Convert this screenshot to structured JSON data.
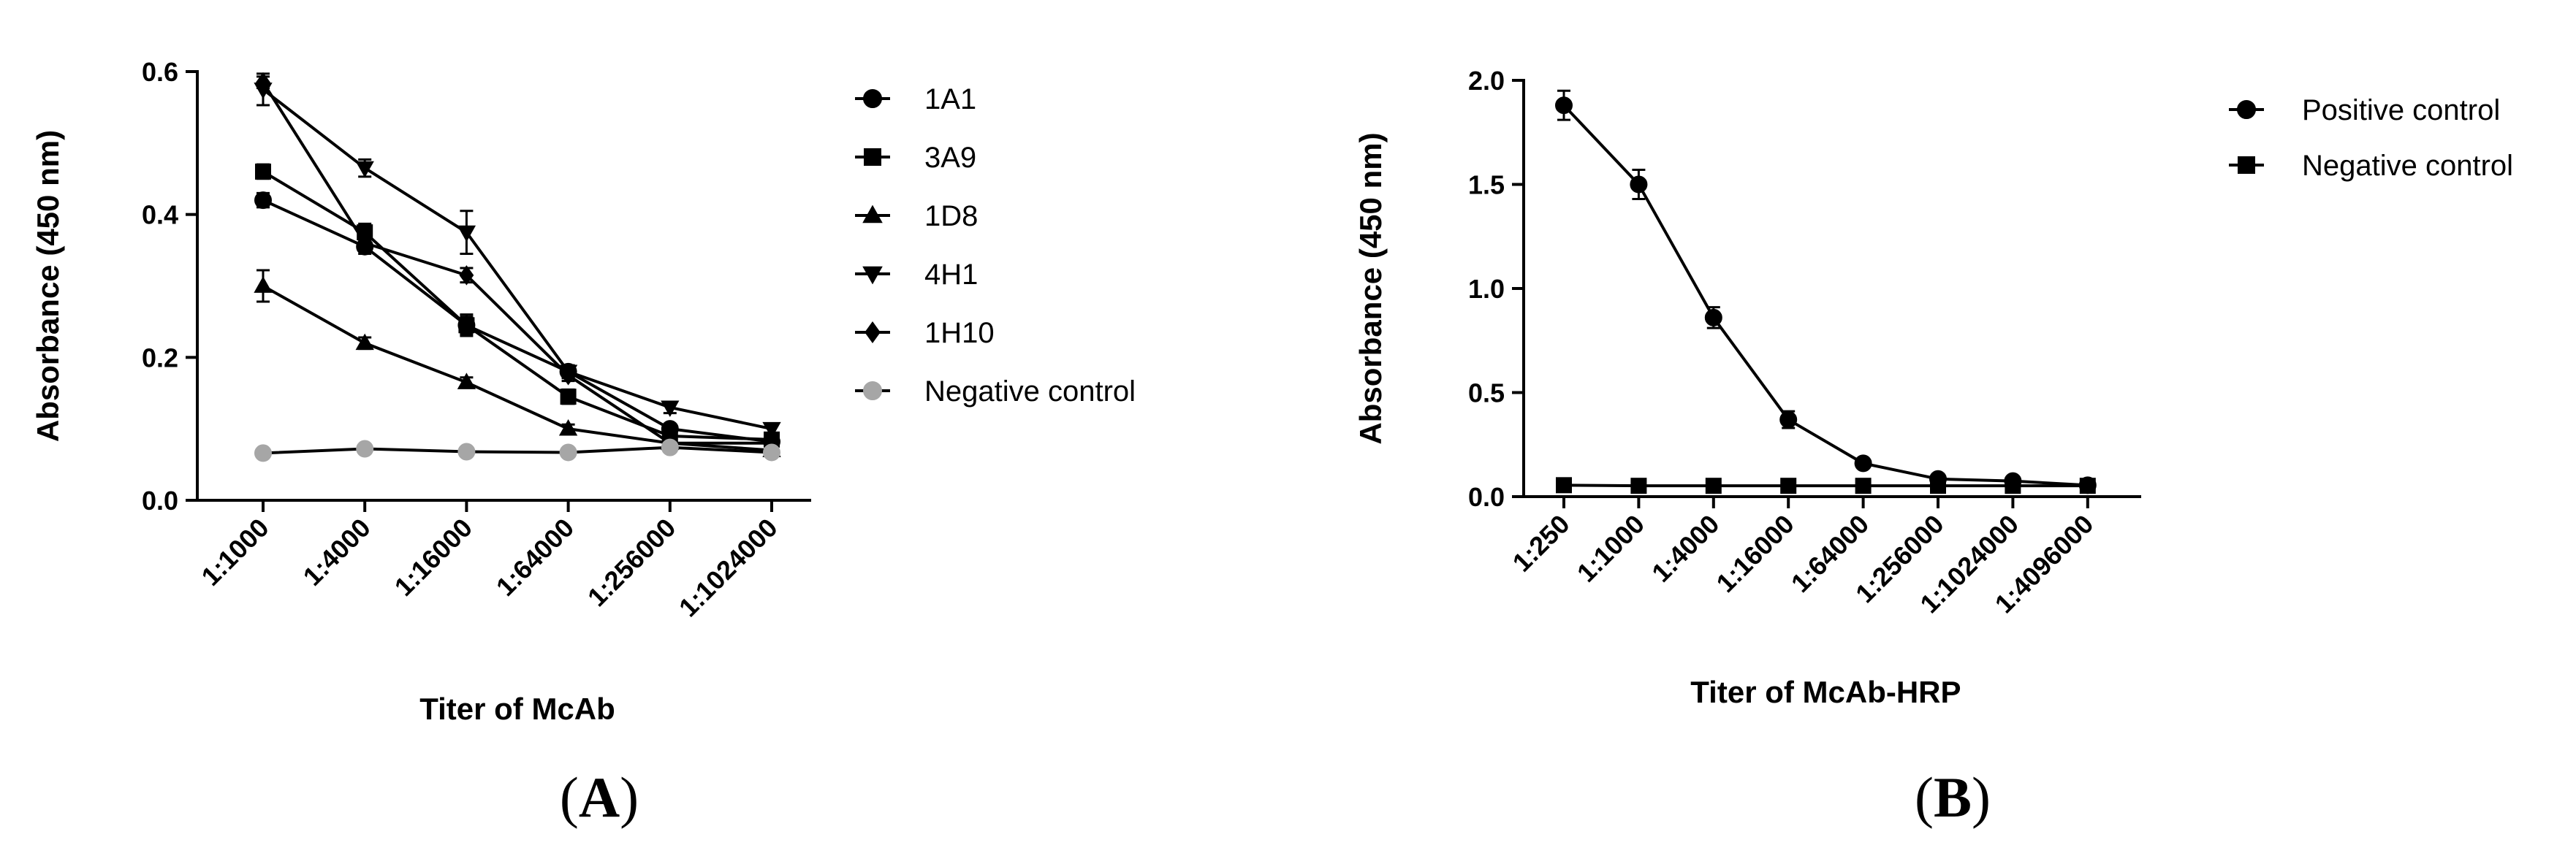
{
  "chart_data": [
    {
      "type": "line",
      "panel_label": "(A)",
      "panel_label_letter": "A",
      "xlabel": "Titer of McAb",
      "ylabel": "Absorbance (450 nm)",
      "ylim": [
        0,
        0.6
      ],
      "yticks": [
        "0.0",
        "0.2",
        "0.4",
        "0.6"
      ],
      "categories": [
        "1:1000",
        "1:4000",
        "1:16000",
        "1:64000",
        "1:256000",
        "1:1024000"
      ],
      "legend_position": "right",
      "series": [
        {
          "name": "1A1",
          "marker": "circle",
          "color": "#000000",
          "values": [
            0.42,
            0.355,
            0.245,
            0.18,
            0.1,
            0.082
          ],
          "errors": [
            0.01,
            0.01,
            0.012,
            0.008,
            0.006,
            0.006
          ]
        },
        {
          "name": "3A9",
          "marker": "square",
          "color": "#000000",
          "values": [
            0.46,
            0.375,
            0.245,
            0.145,
            0.09,
            0.085
          ],
          "errors": [
            0.01,
            0.012,
            0.015,
            0.01,
            0.006,
            0.005
          ]
        },
        {
          "name": "1D8",
          "marker": "triangle",
          "color": "#000000",
          "values": [
            0.3,
            0.22,
            0.165,
            0.1,
            0.08,
            0.07
          ],
          "errors": [
            0.022,
            0.008,
            0.007,
            0.006,
            0.005,
            0.005
          ]
        },
        {
          "name": "4H1",
          "marker": "triangle-down",
          "color": "#000000",
          "values": [
            0.575,
            0.465,
            0.375,
            0.18,
            0.13,
            0.1
          ],
          "errors": [
            0.022,
            0.012,
            0.03,
            0.009,
            0.008,
            0.006
          ]
        },
        {
          "name": "1H10",
          "marker": "diamond",
          "color": "#000000",
          "values": [
            0.585,
            0.36,
            0.315,
            0.175,
            0.08,
            0.08
          ],
          "errors": [
            0.008,
            0.01,
            0.01,
            0.008,
            0.005,
            0.005
          ]
        },
        {
          "name": "Negative control",
          "marker": "circle",
          "color": "#a6a6a6",
          "line_color": "#000000",
          "values": [
            0.066,
            0.072,
            0.068,
            0.067,
            0.074,
            0.067
          ],
          "errors": [
            0.003,
            0.003,
            0.003,
            0.003,
            0.003,
            0.003
          ]
        }
      ]
    },
    {
      "type": "line",
      "panel_label": "(B)",
      "panel_label_letter": "B",
      "xlabel": "Titer of McAb-HRP",
      "ylabel": "Absorbance (450 nm)",
      "ylim": [
        0,
        2.0
      ],
      "yticks": [
        "0.0",
        "0.5",
        "1.0",
        "1.5",
        "2.0"
      ],
      "categories": [
        "1:250",
        "1:1000",
        "1:4000",
        "1:16000",
        "1:64000",
        "1:256000",
        "1:1024000",
        "1:4096000"
      ],
      "legend_position": "top-right",
      "series": [
        {
          "name": "Positive control",
          "marker": "circle",
          "color": "#000000",
          "values": [
            1.88,
            1.5,
            0.86,
            0.37,
            0.16,
            0.085,
            0.075,
            0.055
          ],
          "errors": [
            0.07,
            0.07,
            0.05,
            0.04,
            0.01,
            0.005,
            0.005,
            0.004
          ]
        },
        {
          "name": "Negative control",
          "marker": "square",
          "color": "#000000",
          "values": [
            0.055,
            0.052,
            0.052,
            0.052,
            0.052,
            0.052,
            0.052,
            0.052
          ],
          "errors": [
            0.003,
            0.003,
            0.003,
            0.003,
            0.003,
            0.003,
            0.003,
            0.003
          ]
        }
      ]
    }
  ]
}
